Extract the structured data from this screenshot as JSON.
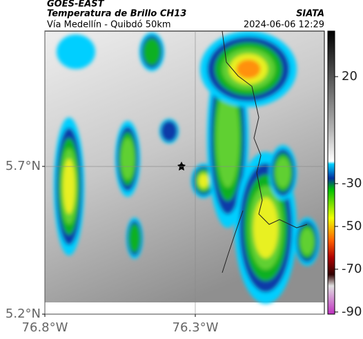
{
  "header": {
    "satellite": "GOES-EAST",
    "title": "Temperatura de Brillo CH13",
    "org": "SIATA",
    "subtitle": "Vía Medellín - Quibdó 50km",
    "datetime": "2024-06-06 12:29"
  },
  "map": {
    "xlim": [
      -76.8,
      -75.871
    ],
    "ylim": [
      5.2,
      6.158
    ],
    "xticks": [
      {
        "value": -76.8,
        "label": "76.8°W"
      },
      {
        "value": -76.3,
        "label": "76.3°W"
      }
    ],
    "yticks": [
      {
        "value": 5.2,
        "label": "5.2°N"
      },
      {
        "value": 5.7,
        "label": "5.7°N"
      }
    ],
    "grid": true
  },
  "colorbar": {
    "clim": [
      -91,
      41.3
    ],
    "ticks": [
      20,
      -30,
      -50,
      -70,
      -90
    ]
  }
}
